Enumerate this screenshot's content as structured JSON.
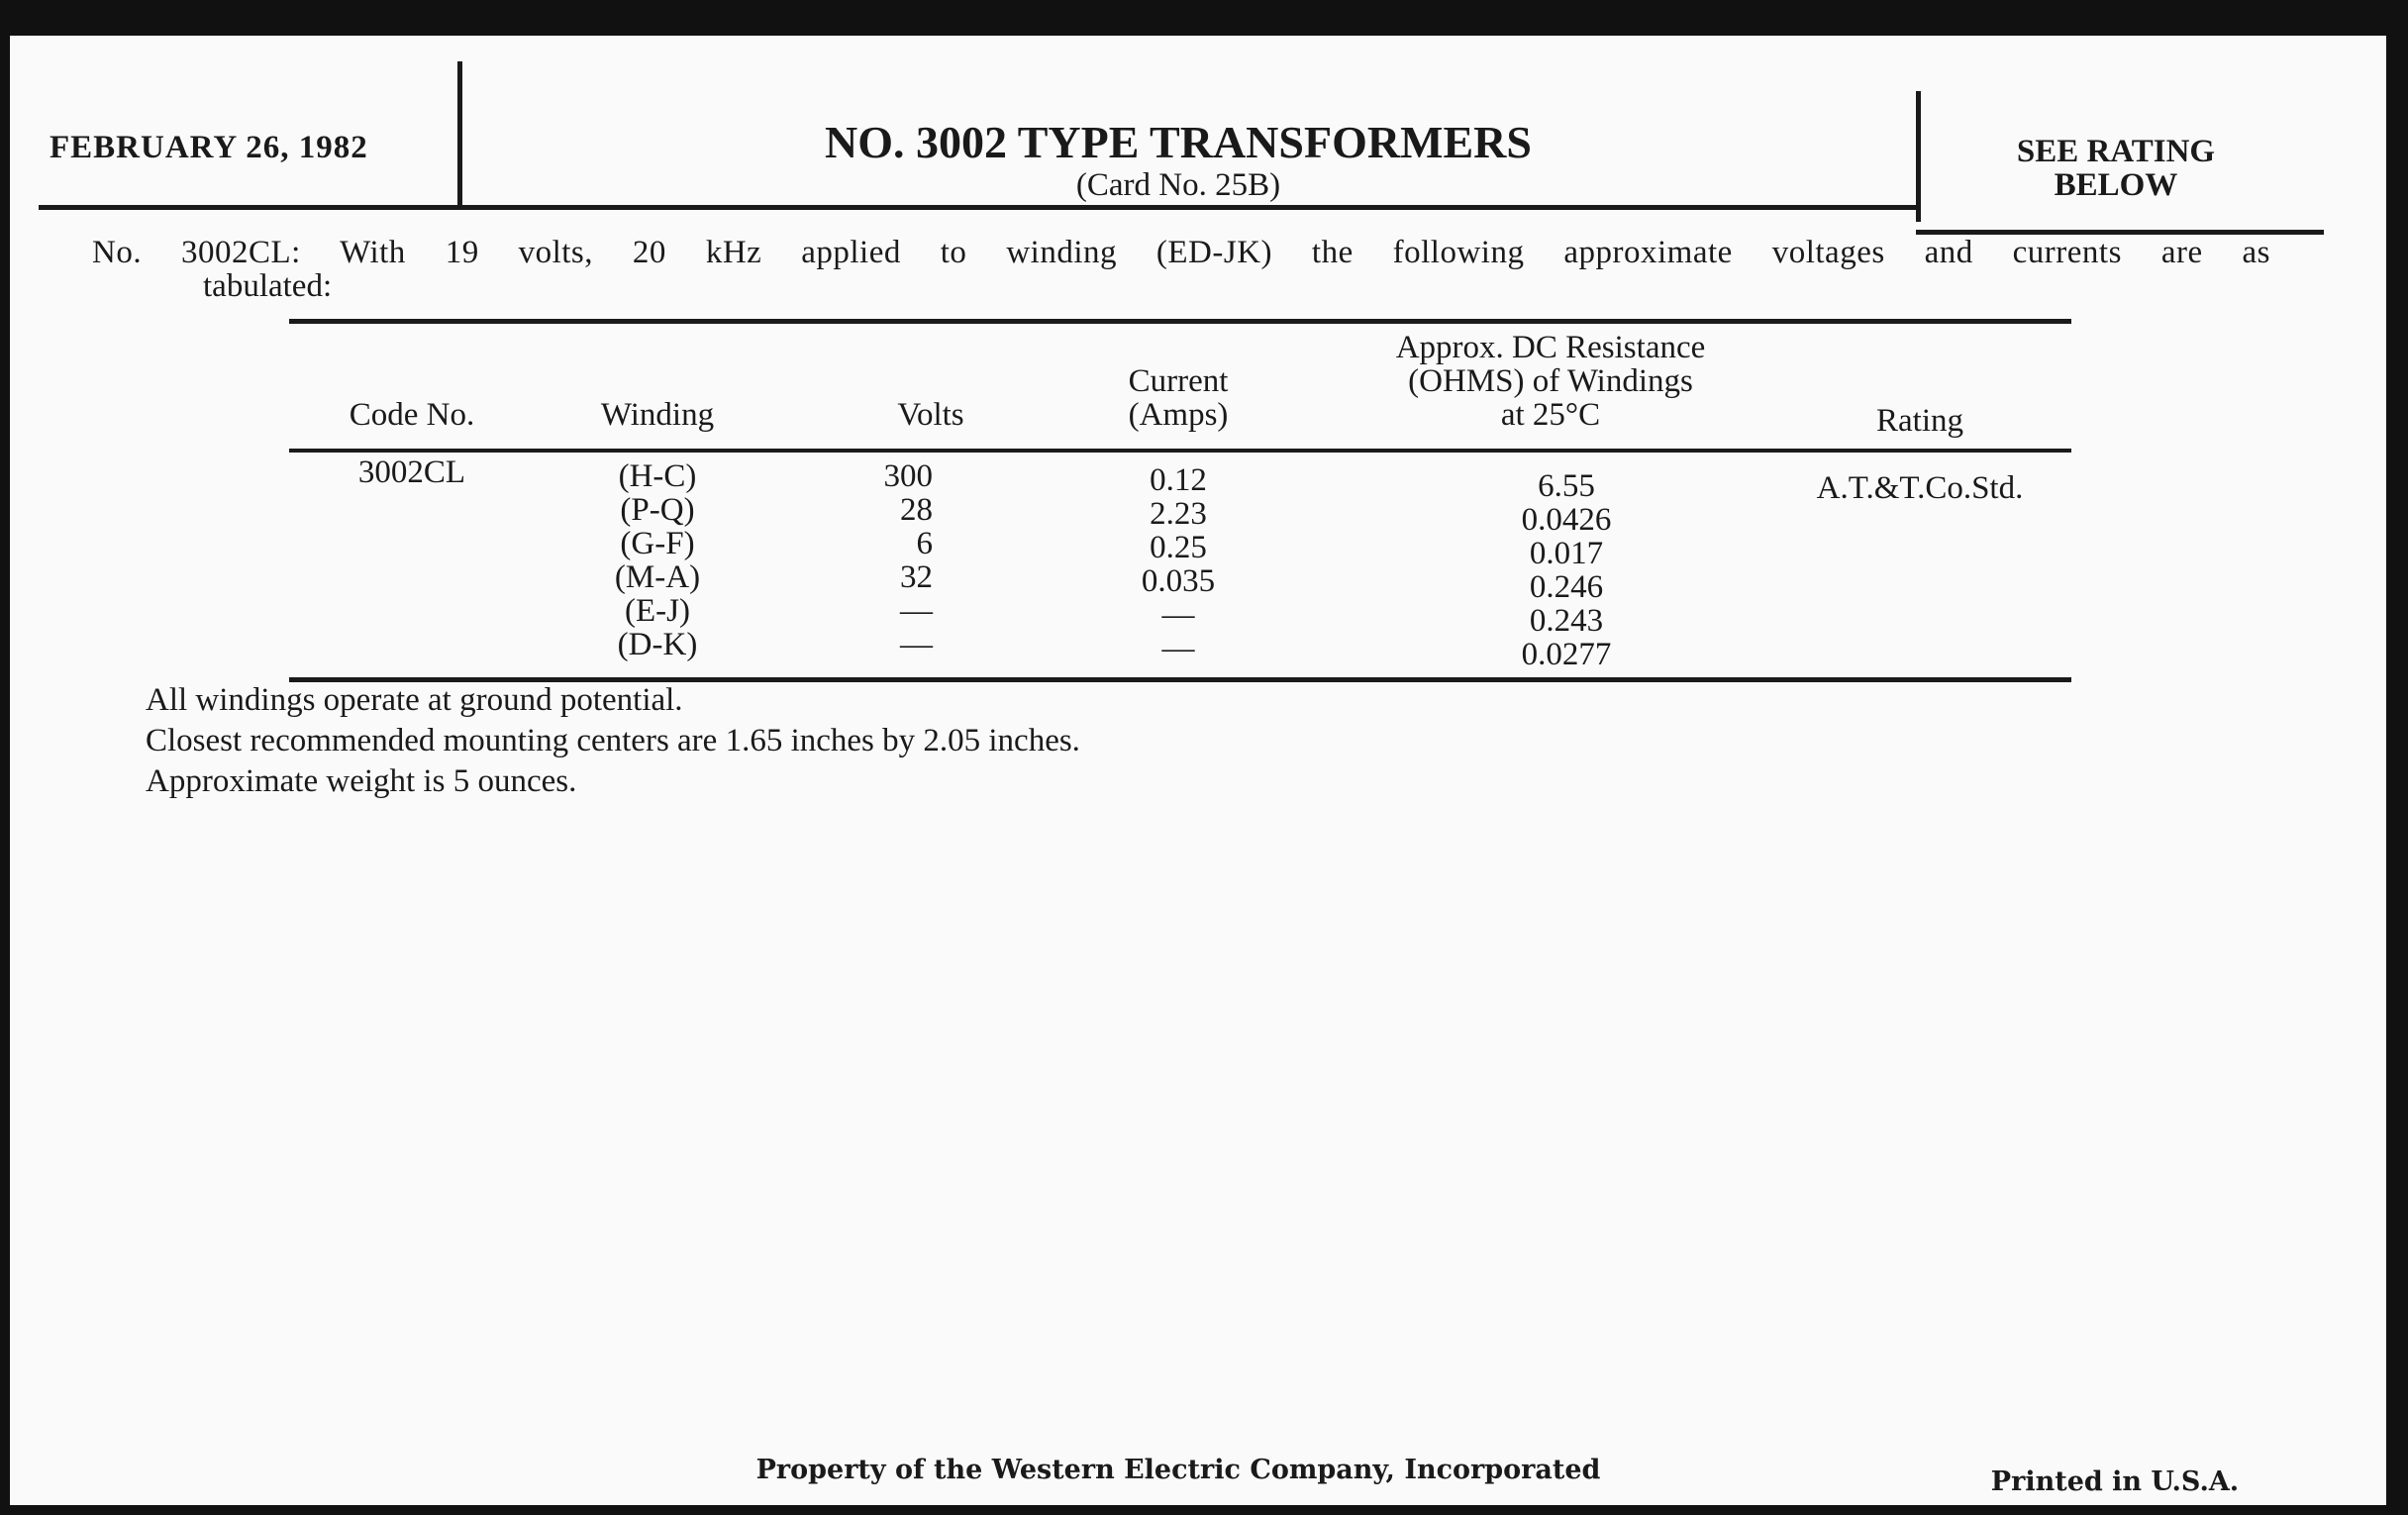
{
  "header": {
    "date": "FEBRUARY 26, 1982",
    "title": "NO. 3002 TYPE TRANSFORMERS",
    "subtitle": "(Card No. 25B)",
    "rating_note": [
      "SEE RATING",
      "BELOW"
    ]
  },
  "intro": [
    "No. 3002CL: With 19 volts, 20 kHz applied to winding (ED-JK) the following approximate voltages and currents are as",
    "tabulated:"
  ],
  "table": {
    "columns": [
      [
        "Code No."
      ],
      [
        "Winding"
      ],
      [
        "Volts"
      ],
      [
        "Current",
        "(Amps)"
      ],
      [
        "Approx. DC Resistance",
        "(OHMS) of Windings",
        "at 25°C"
      ],
      [
        "Rating"
      ]
    ],
    "code": "3002CL",
    "rating": "A.T.&T.Co.Std.",
    "rows": [
      {
        "winding": "(H-C)",
        "volts": "300",
        "current": "0.12",
        "resistance": "6.55"
      },
      {
        "winding": "(P-Q)",
        "volts": "28",
        "current": "2.23",
        "resistance": "0.0426"
      },
      {
        "winding": "(G-F)",
        "volts": "6",
        "current": "0.25",
        "resistance": "0.017"
      },
      {
        "winding": "(M-A)",
        "volts": "32",
        "current": "0.035",
        "resistance": "0.246"
      },
      {
        "winding": "(E-J)",
        "volts": "—",
        "current": "—",
        "resistance": "0.243"
      },
      {
        "winding": "(D-K)",
        "volts": "—",
        "current": "—",
        "resistance": "0.0277"
      }
    ]
  },
  "notes": [
    "All windings operate at ground potential.",
    "Closest recommended mounting centers are 1.65 inches by 2.05 inches.",
    "Approximate weight is 5 ounces."
  ],
  "footer": {
    "property": "Property of the Western Electric Company, Incorporated",
    "printed": "Printed in U.S.A."
  }
}
